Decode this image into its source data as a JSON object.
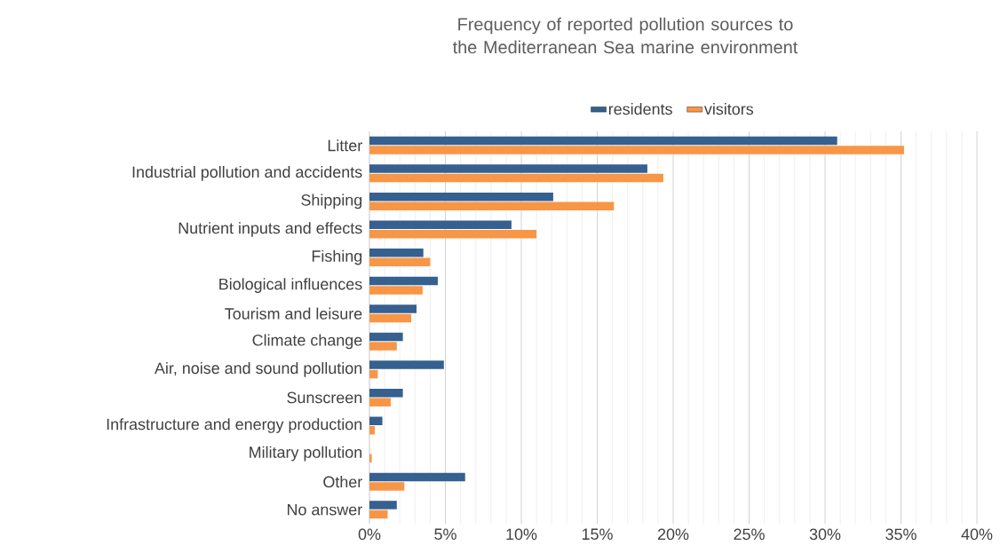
{
  "chart_data": {
    "type": "bar",
    "orientation": "horizontal",
    "title": "Frequency of reported pollution sources to the Mediterranean Sea marine environment",
    "categories": [
      "Litter",
      "Industrial pollution and accidents",
      "Shipping",
      "Nutrient inputs and effects",
      "Fishing",
      "Biological influences",
      "Tourism and leisure",
      "Climate change",
      "Air, noise and sound pollution",
      "Sunscreen",
      "Infrastructure and energy production",
      "Military pollution",
      "Other",
      "No answer"
    ],
    "series": [
      {
        "name": "residents",
        "color": "#35608f",
        "values": [
          30.8,
          18.3,
          12.1,
          9.35,
          3.55,
          4.5,
          3.1,
          2.2,
          4.9,
          2.2,
          0.85,
          0,
          6.3,
          1.8
        ]
      },
      {
        "name": "visitors",
        "color": "#f79646",
        "values": [
          35.2,
          19.35,
          16.1,
          11.0,
          4.0,
          3.5,
          2.75,
          1.8,
          0.55,
          1.4,
          0.35,
          0.15,
          2.3,
          1.2
        ]
      }
    ],
    "xlim": [
      0,
      40
    ],
    "xticks": [
      {
        "value": 0,
        "label": "0%"
      },
      {
        "value": 5,
        "label": "5%"
      },
      {
        "value": 10,
        "label": "10%"
      },
      {
        "value": 15,
        "label": "15%"
      },
      {
        "value": 20,
        "label": "20%"
      },
      {
        "value": 25,
        "label": "25%"
      },
      {
        "value": 30,
        "label": "30%"
      },
      {
        "value": 35,
        "label": "35%"
      },
      {
        "value": 40,
        "label": "40%"
      }
    ],
    "grid": "x",
    "legend": "top"
  }
}
